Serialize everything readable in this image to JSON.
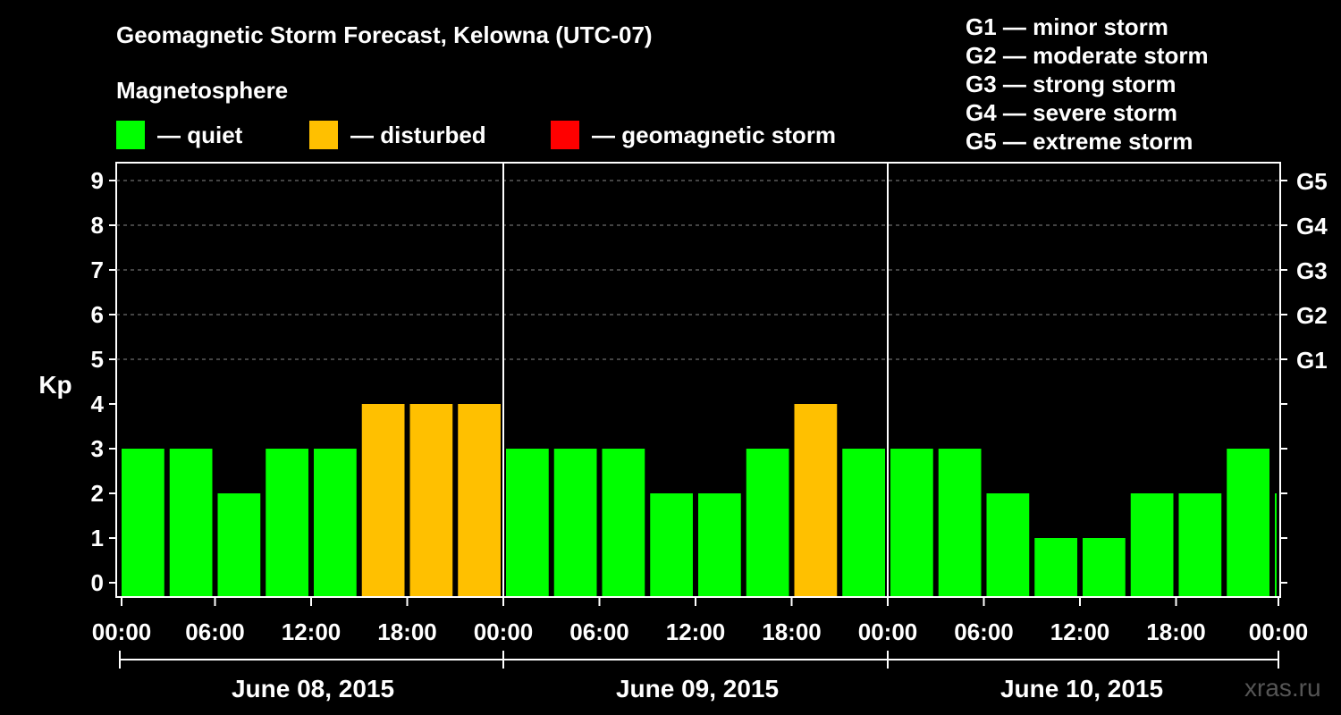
{
  "header": {
    "title": "Geomagnetic Storm Forecast, Kelowna (UTC-07)",
    "subtitle": "Magnetosphere"
  },
  "legend": [
    {
      "label": "— quiet",
      "color": "#00ff00"
    },
    {
      "label": "— disturbed",
      "color": "#ffc000"
    },
    {
      "label": "— geomagnetic storm",
      "color": "#ff0000"
    }
  ],
  "storm_scale": [
    "G1 — minor storm",
    "G2 — moderate storm",
    "G3 — strong storm",
    "G4 — severe storm",
    "G5 — extreme storm"
  ],
  "watermark": "xras.ru",
  "chart_data": {
    "type": "bar",
    "ylabel": "Kp",
    "ylim": [
      0,
      9
    ],
    "yticks": [
      "0",
      "1",
      "2",
      "3",
      "4",
      "5",
      "6",
      "7",
      "8",
      "9"
    ],
    "right_ticks": [
      "G1",
      "G2",
      "G3",
      "G4",
      "G5"
    ],
    "right_tick_values": [
      5,
      6,
      7,
      8,
      9
    ],
    "grid": "horizontal dashed at Kp 5–9",
    "xticks": [
      "00:00",
      "06:00",
      "12:00",
      "18:00",
      "00:00",
      "06:00",
      "12:00",
      "18:00",
      "00:00",
      "06:00",
      "12:00",
      "18:00",
      "00:00"
    ],
    "days": [
      "June 08, 2015",
      "June 09, 2015",
      "June 10, 2015"
    ],
    "interval_hours": 3,
    "values": [
      3,
      3,
      2,
      3,
      3,
      4,
      4,
      4,
      3,
      3,
      3,
      2,
      2,
      3,
      4,
      3,
      3,
      3,
      2,
      1,
      1,
      2,
      2,
      3,
      2
    ],
    "thresholds": {
      "quiet_max": 3,
      "disturbed_max": 4
    },
    "colors": {
      "quiet": "#00ff00",
      "disturbed": "#ffc000",
      "storm": "#ff0000"
    }
  }
}
